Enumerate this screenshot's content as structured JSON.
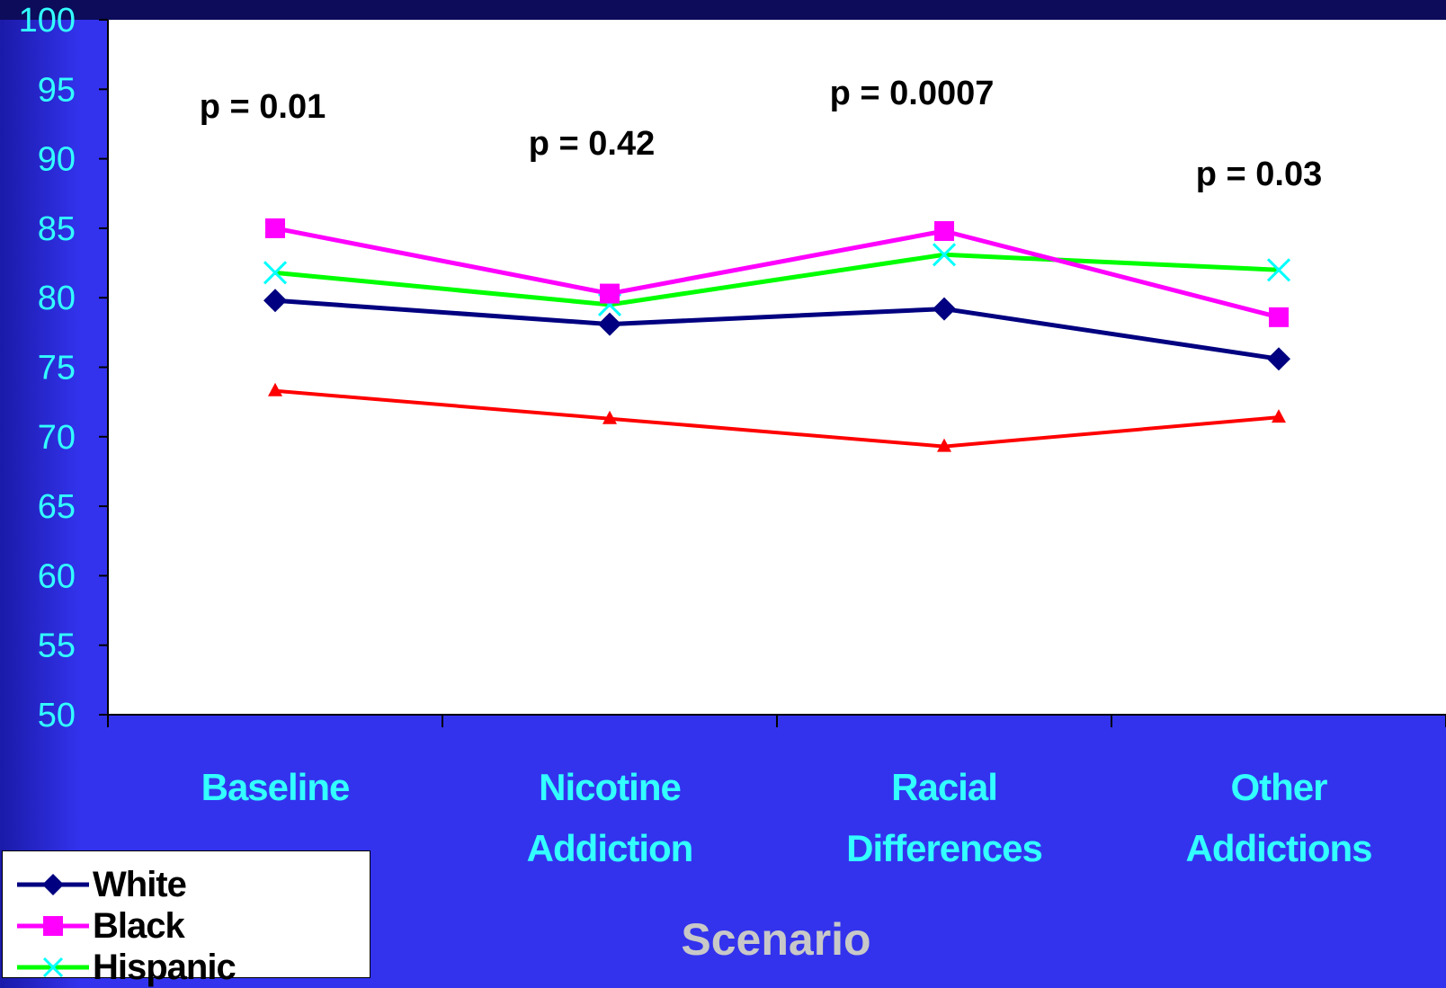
{
  "chart_data": {
    "type": "line",
    "categories": [
      "Baseline",
      "Nicotine Addiction",
      "Racial Differences",
      "Other Addictions"
    ],
    "category_lines": [
      [
        "Baseline"
      ],
      [
        "Nicotine",
        "Addiction"
      ],
      [
        "Racial",
        "Differences"
      ],
      [
        "Other",
        "Addictions"
      ]
    ],
    "xlabel": "Scenario",
    "ylabel": "",
    "ylim": [
      50,
      100
    ],
    "yticks": [
      "50",
      "55",
      "60",
      "65",
      "70",
      "75",
      "80",
      "85",
      "90",
      "95",
      "100"
    ],
    "series": [
      {
        "name": "White",
        "color": "#000080",
        "marker": "diamond",
        "values": [
          79.8,
          78.1,
          79.2,
          75.6
        ]
      },
      {
        "name": "Black",
        "color": "#ff00ff",
        "marker": "square",
        "values": [
          85.0,
          80.3,
          84.8,
          78.6
        ]
      },
      {
        "name": "Hispanic",
        "color": "#00ff00",
        "marker": "x",
        "marker_color": "#00ffff",
        "values": [
          81.8,
          79.5,
          83.1,
          82.0
        ]
      },
      {
        "name": "",
        "color": "#ff0000",
        "marker": "triangle",
        "values": [
          73.3,
          71.3,
          69.3,
          71.4
        ]
      }
    ],
    "annotations": [
      "p = 0.01",
      "p = 0.42",
      "p = 0.0007",
      "p = 0.03"
    ],
    "legend_position": "bottom-left",
    "grid": false
  },
  "legend": {
    "items": [
      "White",
      "Black",
      "Hispanic"
    ]
  }
}
